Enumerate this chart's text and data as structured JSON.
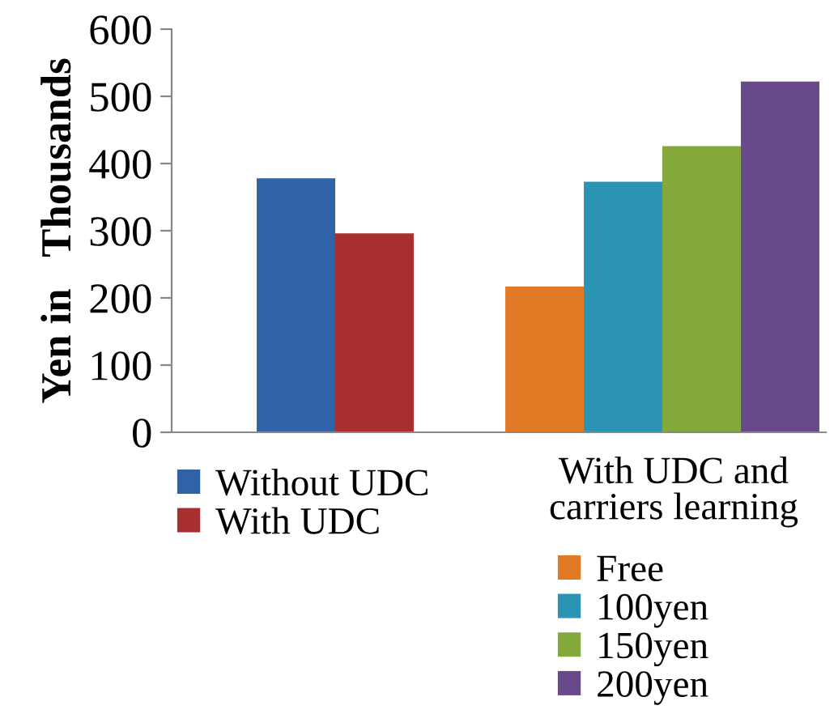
{
  "chart_data": {
    "type": "bar",
    "ylabel": "Yen in   Thousands",
    "categories": [
      null,
      null
    ],
    "series": [
      {
        "name": "Without UDC",
        "color": "#2f62a6",
        "values": [
          378,
          null
        ]
      },
      {
        "name": "With UDC",
        "color": "#a82f2f",
        "values": [
          296,
          null
        ]
      },
      {
        "name": "Free",
        "color": "#e27924",
        "values": [
          null,
          217
        ]
      },
      {
        "name": "100yen",
        "color": "#2b93b3",
        "values": [
          null,
          373
        ]
      },
      {
        "name": "150yen",
        "color": "#84a83a",
        "values": [
          null,
          426
        ]
      },
      {
        "name": "200yen",
        "color": "#684a8c",
        "values": [
          null,
          522
        ]
      }
    ],
    "legend_title": "With UDC and carriers learning",
    "ylim": [
      0,
      600
    ],
    "yticks": [
      0,
      100,
      200,
      300,
      400,
      500,
      600
    ],
    "grid": false,
    "legend": "bottom"
  }
}
